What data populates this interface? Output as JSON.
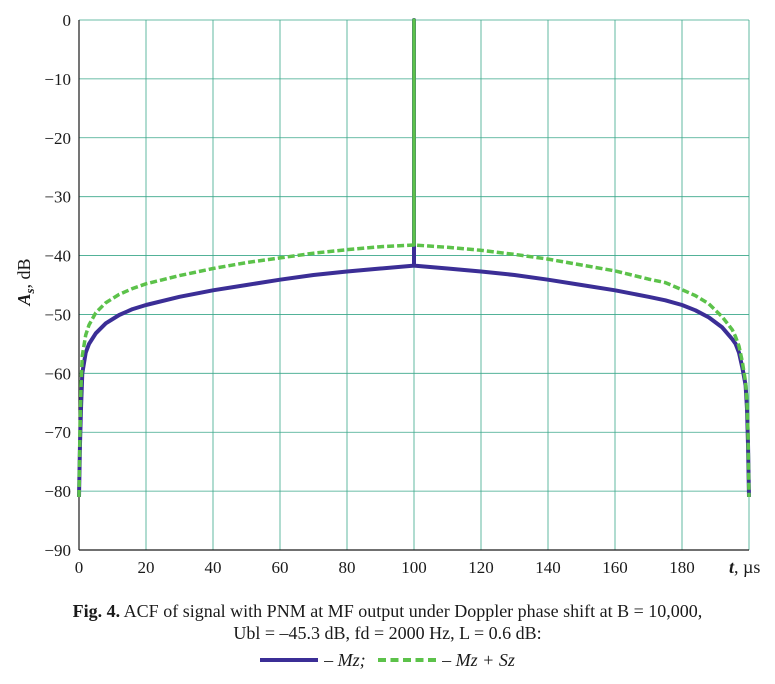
{
  "chart_data": {
    "type": "line",
    "xlabel": "t, µs",
    "xlabel_var": "t",
    "xlabel_unit": "µs",
    "ylabel": "As, dB",
    "ylabel_var": "A",
    "ylabel_sub": "s",
    "ylabel_unit": "dB",
    "xlim": [
      0,
      200
    ],
    "ylim": [
      -90,
      0
    ],
    "xticks": [
      0,
      20,
      40,
      60,
      80,
      100,
      120,
      140,
      160,
      180
    ],
    "yticks": [
      0,
      -10,
      -20,
      -30,
      -40,
      -50,
      -60,
      -70,
      -80,
      -90
    ],
    "grid": true,
    "series": [
      {
        "name": "– Mz;",
        "color": "#3b2e96",
        "style": "solid",
        "x": [
          0,
          0.3,
          0.6,
          1,
          2,
          3,
          5,
          8,
          12,
          16,
          20,
          30,
          40,
          50,
          60,
          70,
          80,
          90,
          100,
          100,
          100,
          110,
          120,
          130,
          140,
          150,
          160,
          170,
          175,
          180,
          184,
          188,
          192,
          195,
          196,
          197,
          198,
          199,
          199.4,
          199.7,
          200
        ],
        "y": [
          -81,
          -72,
          -66,
          -60,
          -56.5,
          -55,
          -53.2,
          -51.5,
          -50.1,
          -49.1,
          -48.4,
          -47,
          -45.9,
          -45,
          -44.1,
          -43.3,
          -42.7,
          -42.2,
          -41.7,
          0,
          -41.7,
          -42.2,
          -42.7,
          -43.3,
          -44.1,
          -45,
          -45.9,
          -47,
          -47.6,
          -48.4,
          -49.3,
          -50.5,
          -52.2,
          -54.2,
          -55,
          -56.5,
          -59,
          -62,
          -66,
          -72,
          -81
        ]
      },
      {
        "name": "– Mz + Sz",
        "color": "#5cc24a",
        "style": "dashed",
        "x": [
          0,
          0.3,
          0.6,
          1,
          2,
          3,
          5,
          8,
          12,
          16,
          20,
          30,
          40,
          50,
          60,
          70,
          80,
          90,
          100,
          100,
          100,
          110,
          120,
          130,
          140,
          150,
          160,
          170,
          175,
          180,
          184,
          188,
          192,
          195,
          196,
          197,
          198,
          199,
          199.4,
          199.7,
          200
        ],
        "y": [
          -81,
          -70,
          -62,
          -57,
          -53.5,
          -51.8,
          -49.7,
          -48,
          -46.6,
          -45.6,
          -44.8,
          -43.4,
          -42.2,
          -41.2,
          -40.4,
          -39.6,
          -39,
          -38.5,
          -38.2,
          0,
          -38.2,
          -38.6,
          -39.1,
          -39.8,
          -40.6,
          -41.6,
          -42.6,
          -44,
          -44.6,
          -45.8,
          -46.8,
          -48.2,
          -50.4,
          -52.6,
          -53.8,
          -55.4,
          -58,
          -61.5,
          -65,
          -70,
          -81
        ]
      }
    ]
  },
  "caption": {
    "line1_bold": "Fig. 4.",
    "line1_text": " ACF of signal with PNM at MF output under Doppler phase shift at B = 10,000,",
    "line2_text": "Ubl = –45.3 dB, fd = 2000 Hz, L = 0.6 dB:"
  }
}
